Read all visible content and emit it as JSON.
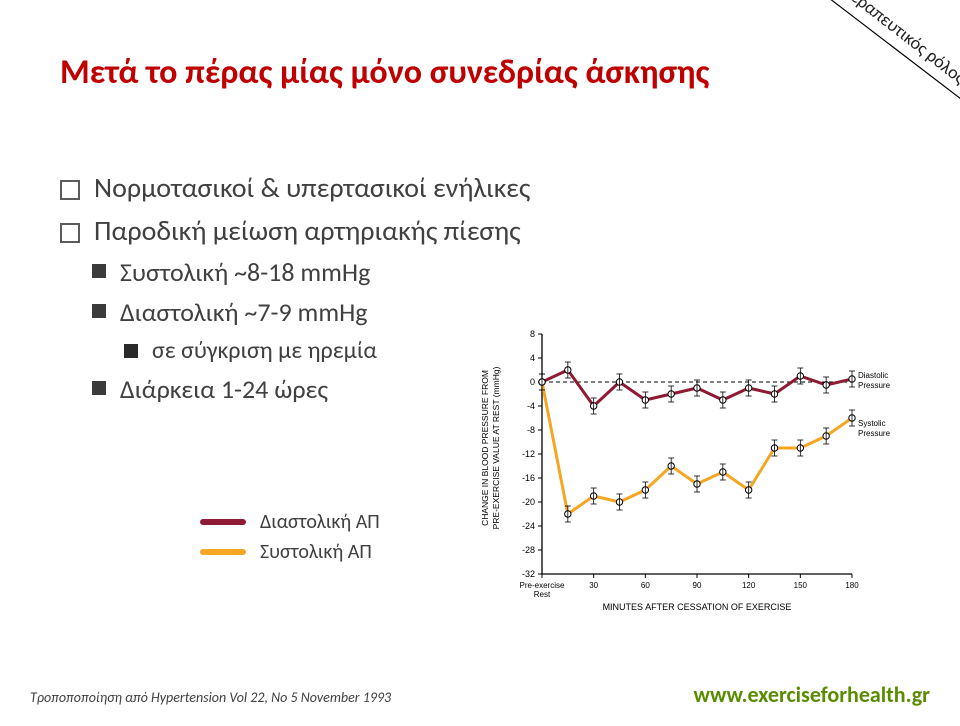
{
  "title": "Μετά  το πέρας μίας μόνο συνεδρίας άσκησης",
  "badge_text": "Θεραπευτικός ρόλος",
  "bullets": {
    "b1a": "Νορμοτασικοί  & υπερτασικοί ενήλικες",
    "b1b": "Παροδική μείωση αρτηριακής πίεσης",
    "b2a": "Συστολική ~8-18 mmHg",
    "b2b": "Διαστολική ~7-9 mmHg",
    "b3a": "σε σύγκριση με ηρεμία",
    "b2c": "Διάρκεια 1-24 ώρες"
  },
  "chart": {
    "type": "line",
    "y_axis_label_line1": "CHANGE IN BLOOD PRESSURE FROM",
    "y_axis_label_line2": "PRE-EXERCISE VALUE AT REST (mmHg)",
    "x_axis_label": "MINUTES AFTER CESSATION OF EXERCISE",
    "x_ticks": [
      "Pre-exercise\nRest",
      "30",
      "60",
      "90",
      "120",
      "150",
      "180"
    ],
    "y_ticks": [
      8,
      4,
      0,
      -4,
      -8,
      -12,
      -16,
      -20,
      -24,
      -28,
      -32
    ],
    "y_lim": [
      -32,
      8
    ],
    "diastolic": {
      "color": "#8f1a33",
      "values": [
        0,
        2,
        -4,
        0,
        -3,
        -2,
        -1,
        -3,
        -1,
        -2,
        1,
        -0.5,
        0.5
      ],
      "label": "Diastolic Pressure"
    },
    "systolic": {
      "color": "#f5a623",
      "values": [
        0,
        -22,
        -19,
        -20,
        -18,
        -14,
        -17,
        -15,
        -18,
        -11,
        -11,
        -9,
        -6
      ],
      "label": "Systolic Pressure"
    },
    "background_color": "#ffffff",
    "axis_color": "#000000",
    "line_width": 3
  },
  "legend": {
    "diastolic": {
      "label": "Διαστολική ΑΠ",
      "color": "#8f1a33"
    },
    "systolic": {
      "label": "Συστολική ΑΠ",
      "color": "#f5a623"
    }
  },
  "footer": {
    "left": "Τροποποποίηση από Hypertension Vol 22, No 5 November 1993",
    "right": "www.exerciseforhealth.gr"
  }
}
